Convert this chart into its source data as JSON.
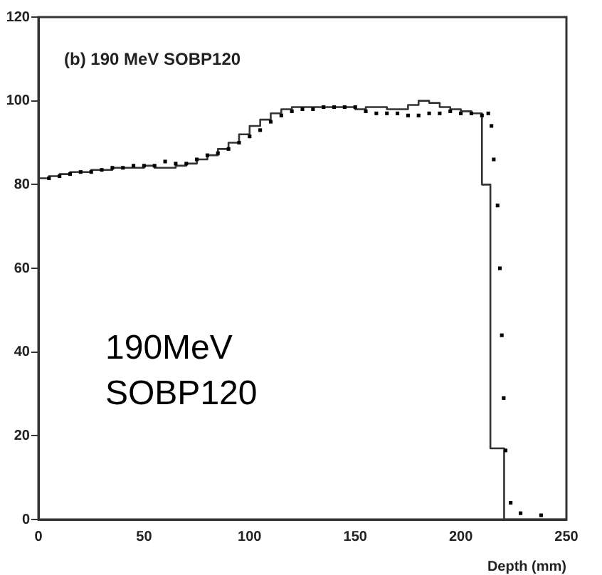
{
  "chart_data": {
    "type": "step",
    "title": "(b) 190 MeV SOBP120",
    "xlabel": "Depth (mm)",
    "annotations": [
      "190MeV SOBP120"
    ],
    "xlim": [
      0,
      250
    ],
    "xticks": [
      0,
      50,
      100,
      150,
      200,
      250
    ],
    "ylim": [
      0,
      120
    ],
    "yticks": [
      0,
      20,
      40,
      60,
      80,
      100,
      120
    ],
    "grid": false,
    "legend": false,
    "series": [
      {
        "color": "#333333",
        "marker": "none",
        "x": [
          0,
          5,
          10,
          15,
          20,
          25,
          30,
          35,
          40,
          45,
          50,
          55,
          60,
          65,
          70,
          75,
          80,
          85,
          90,
          95,
          100,
          105,
          110,
          115,
          120,
          125,
          130,
          135,
          140,
          145,
          150,
          155,
          160,
          165,
          170,
          175,
          180,
          185,
          190,
          195,
          200,
          205,
          210,
          214,
          220.5,
          224.5,
          250
        ],
        "values": [
          81,
          81.5,
          82,
          82.5,
          83,
          83,
          83.5,
          83.5,
          84,
          84,
          84,
          84.5,
          84,
          84,
          84.5,
          85,
          86,
          87,
          88.5,
          90,
          92,
          94,
          95.5,
          97,
          98,
          98.5,
          98.5,
          98.5,
          98.5,
          98.5,
          98.5,
          98,
          98.5,
          98.5,
          98,
          98,
          99,
          100,
          99.5,
          98.5,
          98,
          97.5,
          97,
          80,
          17,
          0,
          0
        ]
      },
      {
        "type": "scatter",
        "color": "#000000",
        "marker": "square",
        "x": [
          5,
          10,
          15,
          20,
          25,
          30,
          35,
          40,
          45,
          50,
          55,
          60,
          65,
          70,
          75,
          80,
          85,
          90,
          95,
          100,
          105,
          110,
          115,
          120,
          125,
          130,
          135,
          140,
          145,
          150,
          155,
          160,
          165,
          170,
          175,
          180,
          185,
          190,
          195,
          200,
          205,
          210,
          213,
          214.5,
          215.6,
          217.4,
          218.5,
          219.4,
          220.3,
          221.2,
          223.6,
          228.3,
          238
        ],
        "values": [
          81.5,
          82,
          82.5,
          83,
          83,
          83.5,
          84,
          84,
          84.5,
          84.5,
          84.5,
          85.5,
          85,
          85,
          86,
          87,
          87.5,
          88.5,
          90,
          91.5,
          93,
          95,
          96.5,
          97.5,
          98,
          98,
          98.5,
          98.5,
          98.5,
          98.5,
          97.5,
          97,
          97,
          97,
          96.5,
          96.5,
          97,
          97,
          97.5,
          97,
          97,
          96.5,
          97,
          94,
          86,
          75,
          60,
          44,
          29,
          16.5,
          4,
          1.5,
          1
        ]
      }
    ]
  }
}
